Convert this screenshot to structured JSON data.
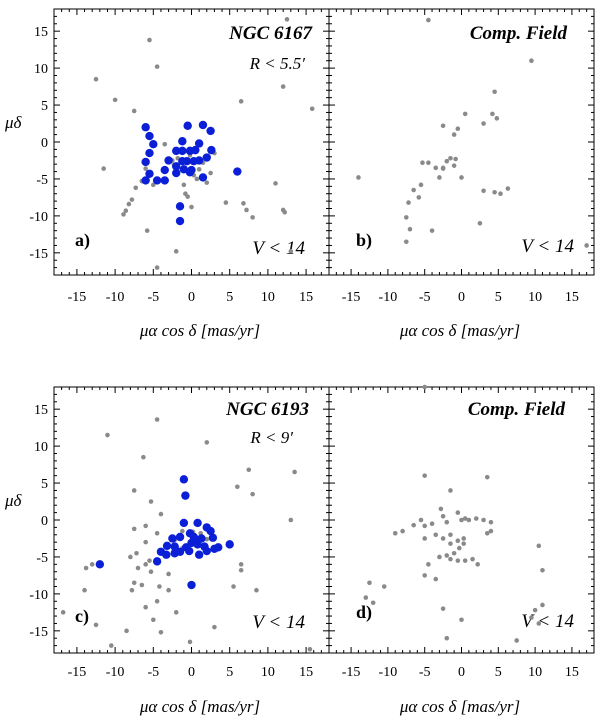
{
  "chart_data": [
    {
      "type": "scatter",
      "panel": "a)",
      "title": "NGC 6167",
      "radius_label": "R < 5.5′",
      "mag_label": "V < 14",
      "xlabel": "μα cos δ [mas/yr]",
      "ylabel": "μδ",
      "xlim": [
        -18,
        18
      ],
      "ylim": [
        -18,
        18
      ],
      "xticks": [
        -15,
        -10,
        -5,
        0,
        5,
        10,
        15
      ],
      "yticks": [
        15,
        10,
        5,
        0,
        -5,
        -10,
        -15
      ],
      "colors": {
        "field": "#8a8a8a",
        "member": "#0a1fd6"
      },
      "series": [
        {
          "name": "field",
          "points": [
            [
              -12.5,
              8.5
            ],
            [
              -10,
              5.7
            ],
            [
              -5.5,
              13.8
            ],
            [
              -4.5,
              10.2
            ],
            [
              -3.5,
              -0.3
            ],
            [
              -2.5,
              -2.5
            ],
            [
              -2.3,
              -3.1
            ],
            [
              -2,
              -3.6
            ],
            [
              -1.8,
              -2.2
            ],
            [
              -1.5,
              -1.2
            ],
            [
              -1,
              -5.8
            ],
            [
              -0.8,
              -7
            ],
            [
              -0.5,
              -7.4
            ],
            [
              -0.2,
              -1.8
            ],
            [
              0.3,
              -4.5
            ],
            [
              0.7,
              -5
            ],
            [
              1,
              -3.7
            ],
            [
              1.5,
              -2.8
            ],
            [
              2,
              -5.5
            ],
            [
              2.5,
              -4.2
            ],
            [
              3,
              -1.5
            ],
            [
              -7.3,
              -6.2
            ],
            [
              -7.8,
              -7.8
            ],
            [
              -8.2,
              -8.4
            ],
            [
              -8.6,
              -9.3
            ],
            [
              -8.9,
              -9.8
            ],
            [
              -6.5,
              -5.3
            ],
            [
              -6,
              -3.6
            ],
            [
              -5.8,
              -12
            ],
            [
              -4.5,
              -17
            ],
            [
              -5,
              -5.8
            ],
            [
              -11.5,
              -3.6
            ],
            [
              -7.5,
              4.2
            ],
            [
              -2,
              -14.8
            ],
            [
              0,
              -8.8
            ],
            [
              4.5,
              -8.2
            ],
            [
              6.5,
              5.5
            ],
            [
              6.8,
              -8.3
            ],
            [
              7.2,
              -9.2
            ],
            [
              8,
              -10.2
            ],
            [
              11,
              -5.6
            ],
            [
              12,
              -9.2
            ],
            [
              12.2,
              -9.5
            ],
            [
              12,
              7.5
            ],
            [
              12.5,
              16.6
            ],
            [
              15.8,
              4.5
            ],
            [
              13,
              -14.8
            ]
          ]
        },
        {
          "name": "members",
          "points": [
            [
              -6,
              2
            ],
            [
              -5.5,
              0.8
            ],
            [
              -5,
              -0.3
            ],
            [
              -5.5,
              -1.5
            ],
            [
              -6,
              -2.7
            ],
            [
              -5.5,
              -4.3
            ],
            [
              -6,
              -5.2
            ],
            [
              -4.5,
              -5.2
            ],
            [
              -3.5,
              -5.2
            ],
            [
              -3.5,
              -3.8
            ],
            [
              -3,
              -2.5
            ],
            [
              -2,
              -1.2
            ],
            [
              -1.2,
              -1.2
            ],
            [
              -1.2,
              0.1
            ],
            [
              -0.5,
              2.2
            ],
            [
              -0.2,
              -1.2
            ],
            [
              0.5,
              -1.1
            ],
            [
              1,
              -0.2
            ],
            [
              1.5,
              2.3
            ],
            [
              2.5,
              1.5
            ],
            [
              -0.6,
              -2.6
            ],
            [
              0,
              -3.8
            ],
            [
              0.3,
              -2.6
            ],
            [
              1,
              -2.5
            ],
            [
              2,
              -2.1
            ],
            [
              2.6,
              -1.1
            ],
            [
              -1.2,
              -2.6
            ],
            [
              -2,
              -4.2
            ],
            [
              -1,
              -3.7
            ],
            [
              -0.2,
              -4.1
            ],
            [
              1.5,
              -4.8
            ],
            [
              -1.5,
              -8.7
            ],
            [
              -1.5,
              -10.7
            ],
            [
              6,
              -4
            ],
            [
              -2,
              -3.3
            ]
          ]
        }
      ]
    },
    {
      "type": "scatter",
      "panel": "b)",
      "title": "Comp. Field",
      "mag_label": "V < 14",
      "xlabel": "μα cos δ [mas/yr]",
      "xlim": [
        -18,
        18
      ],
      "ylim": [
        -18,
        18
      ],
      "xticks": [
        -15,
        -10,
        -5,
        0,
        5,
        10,
        15
      ],
      "colors": {
        "field": "#8a8a8a"
      },
      "series": [
        {
          "name": "field",
          "points": [
            [
              -4.5,
              16.5
            ],
            [
              9.5,
              11
            ],
            [
              4.5,
              6.8
            ],
            [
              4.2,
              3.8
            ],
            [
              4.8,
              3.2
            ],
            [
              0.5,
              3.8
            ],
            [
              -2.5,
              2.2
            ],
            [
              -0.5,
              1.8
            ],
            [
              3,
              2.5
            ],
            [
              -1,
              1
            ],
            [
              -1.5,
              -2.2
            ],
            [
              -0.8,
              -2.3
            ],
            [
              -2,
              -2.6
            ],
            [
              -2.5,
              -3.5
            ],
            [
              -3.5,
              -3.5
            ],
            [
              -4.5,
              -2.8
            ],
            [
              -5.3,
              -2.8
            ],
            [
              -3,
              -4.8
            ],
            [
              -5.5,
              -5.8
            ],
            [
              -6.5,
              -6.5
            ],
            [
              -7.2,
              -8.2
            ],
            [
              -5.8,
              -7.5
            ],
            [
              -7.5,
              -10.2
            ],
            [
              -7,
              -11.8
            ],
            [
              -7.5,
              -13.5
            ],
            [
              -4,
              -12
            ],
            [
              -14,
              -4.8
            ],
            [
              0,
              -4.8
            ],
            [
              2.5,
              -11
            ],
            [
              3,
              -6.6
            ],
            [
              4.5,
              -6.8
            ],
            [
              5.3,
              -7
            ],
            [
              6.3,
              -6.3
            ],
            [
              17,
              -14
            ],
            [
              -2.5,
              -3.6
            ],
            [
              -1,
              -3.2
            ]
          ]
        }
      ]
    },
    {
      "type": "scatter",
      "panel": "c)",
      "title": "NGC 6193",
      "radius_label": "R < 9′",
      "mag_label": "V < 14",
      "xlabel": "μα cos δ [mas/yr]",
      "ylabel": "μδ",
      "xlim": [
        -18,
        18
      ],
      "ylim": [
        -18,
        18
      ],
      "xticks": [
        -15,
        -10,
        -5,
        0,
        5,
        10,
        15
      ],
      "yticks": [
        15,
        10,
        5,
        0,
        -5,
        -10,
        -15
      ],
      "colors": {
        "field": "#8a8a8a",
        "member": "#0a1fd6"
      },
      "series": [
        {
          "name": "field",
          "points": [
            [
              -4.5,
              13.6
            ],
            [
              -6.3,
              8.5
            ],
            [
              2,
              10.5
            ],
            [
              -11,
              11.5
            ],
            [
              -7.5,
              4
            ],
            [
              -5.3,
              2.5
            ],
            [
              -4,
              0.8
            ],
            [
              -6,
              -0.8
            ],
            [
              -7.5,
              -1.2
            ],
            [
              -4.5,
              -1.8
            ],
            [
              -6,
              -3
            ],
            [
              -7.2,
              -4.5
            ],
            [
              -8,
              -5
            ],
            [
              -5.5,
              -5.5
            ],
            [
              -6,
              -6
            ],
            [
              -7,
              -6.5
            ],
            [
              -5.3,
              -7
            ],
            [
              -3,
              -7.3
            ],
            [
              -7.5,
              -8.5
            ],
            [
              -6.5,
              -8.8
            ],
            [
              -4.2,
              -9
            ],
            [
              -3,
              -9.5
            ],
            [
              -7.8,
              -9.5
            ],
            [
              -4.5,
              -11
            ],
            [
              -6,
              -11.8
            ],
            [
              -2,
              -12.5
            ],
            [
              -5,
              -13.5
            ],
            [
              -4,
              -15.2
            ],
            [
              -0.2,
              -16.5
            ],
            [
              -13,
              -6
            ],
            [
              -13.8,
              -6.5
            ],
            [
              -14,
              -9.5
            ],
            [
              -16.8,
              -12.5
            ],
            [
              -12.5,
              -14.2
            ],
            [
              -10.5,
              -17
            ],
            [
              -8.5,
              -15
            ],
            [
              6.5,
              -6
            ],
            [
              6.5,
              -6.8
            ],
            [
              5.5,
              -9
            ],
            [
              3,
              -14.5
            ],
            [
              8.5,
              -9.5
            ],
            [
              7.5,
              6.8
            ],
            [
              6,
              4.5
            ],
            [
              8,
              3.5
            ],
            [
              13.5,
              6.5
            ],
            [
              13,
              0
            ],
            [
              15.5,
              -17.5
            ],
            [
              -2.2,
              -2.7
            ],
            [
              -1.2,
              -1.5
            ],
            [
              0.2,
              -1.6
            ],
            [
              1.2,
              -1.8
            ],
            [
              2,
              -2.6
            ],
            [
              -1.2,
              -3.8
            ]
          ]
        },
        {
          "name": "members",
          "points": [
            [
              -12,
              -6
            ],
            [
              -1,
              5.5
            ],
            [
              -0.8,
              3.3
            ],
            [
              -1,
              -0.4
            ],
            [
              0.8,
              -0.4
            ],
            [
              -2.5,
              -2.5
            ],
            [
              -3.2,
              -3.5
            ],
            [
              -4,
              -4.3
            ],
            [
              -3.3,
              -4.7
            ],
            [
              -2.2,
              -4.5
            ],
            [
              -1.5,
              -4.3
            ],
            [
              -0.7,
              -3.7
            ],
            [
              -0.3,
              -4.2
            ],
            [
              0,
              -3.1
            ],
            [
              0.5,
              -2.8
            ],
            [
              0.8,
              -3.3
            ],
            [
              1.3,
              -2.5
            ],
            [
              1.7,
              -3.6
            ],
            [
              2,
              -4.2
            ],
            [
              1,
              -4.7
            ],
            [
              3,
              -3.9
            ],
            [
              3.5,
              -3.7
            ],
            [
              2.8,
              -2.4
            ],
            [
              2.5,
              -1.5
            ],
            [
              2,
              -1
            ],
            [
              5,
              -3.3
            ],
            [
              -4.5,
              -5.6
            ],
            [
              0,
              -8.8
            ],
            [
              -0.2,
              -1.8
            ],
            [
              0.3,
              -2.3
            ],
            [
              -1.5,
              -2.3
            ],
            [
              -2.2,
              -3.6
            ]
          ]
        }
      ]
    },
    {
      "type": "scatter",
      "panel": "d)",
      "title": "Comp. Field",
      "mag_label": "V < 14",
      "xlabel": "μα cos δ [mas/yr]",
      "xlim": [
        -18,
        18
      ],
      "ylim": [
        -18,
        18
      ],
      "xticks": [
        -15,
        -10,
        -5,
        0,
        5,
        10,
        15
      ],
      "colors": {
        "field": "#8a8a8a"
      },
      "series": [
        {
          "name": "field",
          "points": [
            [
              -5,
              18
            ],
            [
              -5,
              6
            ],
            [
              3.5,
              5.8
            ],
            [
              -1.5,
              4
            ],
            [
              -2.8,
              1.5
            ],
            [
              -2.5,
              0.5
            ],
            [
              -2,
              -0.3
            ],
            [
              -0.5,
              1
            ],
            [
              0,
              0
            ],
            [
              0.5,
              0.2
            ],
            [
              1,
              0
            ],
            [
              2,
              0.2
            ],
            [
              3,
              0
            ],
            [
              4,
              -0.3
            ],
            [
              3.5,
              -1.8
            ],
            [
              4,
              -1.5
            ],
            [
              -4,
              -0.5
            ],
            [
              -5.5,
              0
            ],
            [
              -6.5,
              -0.7
            ],
            [
              -5,
              -0.8
            ],
            [
              -8,
              -1.5
            ],
            [
              -9,
              -1.8
            ],
            [
              -5,
              -2.5
            ],
            [
              -3.5,
              -2
            ],
            [
              -2.5,
              -2.5
            ],
            [
              -1.5,
              -2
            ],
            [
              -0.5,
              -2.8
            ],
            [
              0.3,
              -3.2
            ],
            [
              -0.3,
              -3.8
            ],
            [
              -1,
              -4.5
            ],
            [
              -2,
              -4.8
            ],
            [
              -3,
              -5
            ],
            [
              -1.5,
              -5.3
            ],
            [
              -0.5,
              -5.5
            ],
            [
              0.5,
              -5.5
            ],
            [
              1.5,
              -5.3
            ],
            [
              2.2,
              -6
            ],
            [
              -4.5,
              -6
            ],
            [
              -5,
              -7.5
            ],
            [
              -3.5,
              -8
            ],
            [
              -2.5,
              -12
            ],
            [
              0,
              -13.5
            ],
            [
              -2,
              -16
            ],
            [
              -12.5,
              -8.5
            ],
            [
              -13,
              -10.5
            ],
            [
              -12,
              -11.2
            ],
            [
              -10.5,
              -9
            ],
            [
              10.5,
              -3.5
            ],
            [
              11,
              -6.8
            ],
            [
              11,
              -11.5
            ],
            [
              10,
              -12.2
            ],
            [
              10.5,
              -14
            ],
            [
              9.5,
              -13.2
            ],
            [
              7.5,
              -16.3
            ],
            [
              -1.5,
              -3.2
            ],
            [
              0.3,
              -2.5
            ]
          ]
        }
      ]
    }
  ]
}
